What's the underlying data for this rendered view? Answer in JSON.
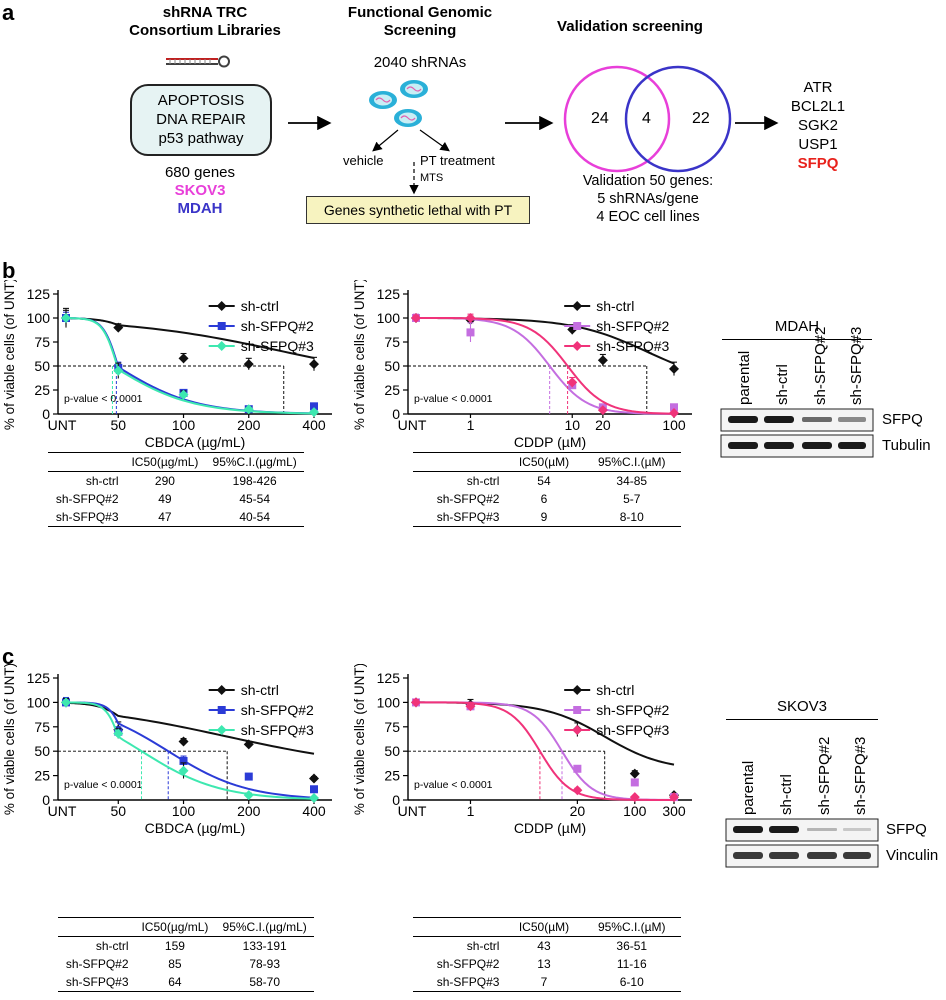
{
  "panel_a": {
    "letter": "a",
    "library_title": [
      "shRNA TRC",
      "Consortium Libraries"
    ],
    "library_box": [
      "APOPTOSIS",
      "DNA REPAIR",
      "p53 pathway"
    ],
    "genes_count": "680 genes",
    "cell_line_1": "SKOV3",
    "cell_line_2": "MDAH",
    "screen_title": [
      "Functional Genomic",
      "Screening"
    ],
    "shrna_count": "2040 shRNAs",
    "vehicle": "vehicle",
    "pt_treatment": "PT treatment",
    "mts": "MTS",
    "synthetic_lethal": "Genes synthetic lethal with PT",
    "validation_title": "Validation screening",
    "venn": {
      "left": "24",
      "overlap": "4",
      "right": "22"
    },
    "validation_text": [
      "Validation 50 genes:",
      "5 shRNAs/gene",
      "4 EOC cell lines"
    ],
    "genes": [
      "ATR",
      "BCL2L1",
      "SGK2",
      "USP1",
      "SFPQ"
    ],
    "colors": {
      "magenta": "#e83fd9",
      "blue": "#3a34c8",
      "red": "#e8221c"
    }
  },
  "panel_b": {
    "letter": "b",
    "table_cbdca": {
      "headers": [
        "",
        "IC50(µg/mL)",
        "95%C.I.(µg/mL)"
      ],
      "rows": [
        [
          "sh-ctrl",
          "290",
          "198-426"
        ],
        [
          "sh-SFPQ#2",
          "49",
          "45-54"
        ],
        [
          "sh-SFPQ#3",
          "47",
          "40-54"
        ]
      ]
    },
    "table_cddp": {
      "headers": [
        "",
        "IC50(µM)",
        "95%C.I.(µM)"
      ],
      "rows": [
        [
          "sh-ctrl",
          "54",
          "34-85"
        ],
        [
          "sh-SFPQ#2",
          "6",
          "5-7"
        ],
        [
          "sh-SFPQ#3",
          "9",
          "8-10"
        ]
      ]
    },
    "western": {
      "cell_line": "MDAH",
      "lanes": [
        "parental",
        "sh-ctrl",
        "sh-SFPQ#2",
        "sh-SFPQ#3"
      ],
      "bands": [
        "SFPQ",
        "Tubulin"
      ]
    }
  },
  "panel_c": {
    "letter": "c",
    "table_cbdca": {
      "headers": [
        "",
        "IC50(µg/mL)",
        "95%C.I.(µg/mL)"
      ],
      "rows": [
        [
          "sh-ctrl",
          "159",
          "133-191"
        ],
        [
          "sh-SFPQ#2",
          "85",
          "78-93"
        ],
        [
          "sh-SFPQ#3",
          "64",
          "58-70"
        ]
      ]
    },
    "table_cddp": {
      "headers": [
        "",
        "IC50(µM)",
        "95%C.I.(µM)"
      ],
      "rows": [
        [
          "sh-ctrl",
          "43",
          "36-51"
        ],
        [
          "sh-SFPQ#2",
          "13",
          "11-16"
        ],
        [
          "sh-SFPQ#3",
          "7",
          "6-10"
        ]
      ]
    },
    "western": {
      "cell_line": "SKOV3",
      "lanes": [
        "parental",
        "sh-ctrl",
        "sh-SFPQ#2",
        "sh-SFPQ#3"
      ],
      "bands": [
        "SFPQ",
        "Vinculin"
      ]
    }
  },
  "chart_data": [
    {
      "id": "b_cbdca",
      "type": "line",
      "xscale": "log",
      "ylabel": "% of viable cells (of UNT)",
      "xlabel": "CBDCA (µg/mL)",
      "ylim": [
        0,
        125
      ],
      "yticks": [
        0,
        25,
        50,
        75,
        100,
        125
      ],
      "xticks": [
        50,
        100,
        200,
        400
      ],
      "unt_label": "UNT",
      "annotation": "p-value < 0.0001",
      "series": [
        {
          "name": "sh-ctrl",
          "color": "#111111",
          "marker": "diamond",
          "ic50": 290,
          "points": [
            {
              "x": 0,
              "y": 100,
              "err": 8
            },
            {
              "x": 50,
              "y": 90,
              "err": 4
            },
            {
              "x": 100,
              "y": 58,
              "err": 5
            },
            {
              "x": 200,
              "y": 52,
              "err": 6
            },
            {
              "x": 400,
              "y": 52,
              "err": 7
            }
          ]
        },
        {
          "name": "sh-SFPQ#2",
          "color": "#2b3bd6",
          "marker": "square",
          "ic50": 49,
          "points": [
            {
              "x": 0,
              "y": 100,
              "err": 6
            },
            {
              "x": 50,
              "y": 48,
              "err": 6
            },
            {
              "x": 100,
              "y": 22,
              "err": 3
            },
            {
              "x": 200,
              "y": 5,
              "err": 2
            },
            {
              "x": 400,
              "y": 8,
              "err": 1
            }
          ]
        },
        {
          "name": "sh-SFPQ#3",
          "color": "#3ee8b0",
          "marker": "diamond",
          "ic50": 47,
          "points": [
            {
              "x": 0,
              "y": 100,
              "err": 10
            },
            {
              "x": 50,
              "y": 45,
              "err": 8
            },
            {
              "x": 100,
              "y": 20,
              "err": 4
            },
            {
              "x": 200,
              "y": 5,
              "err": 2
            },
            {
              "x": 400,
              "y": 2,
              "err": 1
            }
          ]
        }
      ]
    },
    {
      "id": "b_cddp",
      "type": "line",
      "xscale": "log",
      "ylabel": "% of viable cells (of UNT)",
      "xlabel": "CDDP (µM)",
      "ylim": [
        0,
        125
      ],
      "yticks": [
        0,
        25,
        50,
        75,
        100,
        125
      ],
      "xticks": [
        1,
        10,
        20,
        100
      ],
      "unt_label": "UNT",
      "annotation": "p-value < 0.0001",
      "series": [
        {
          "name": "sh-ctrl",
          "color": "#111111",
          "marker": "diamond",
          "ic50": 54,
          "points": [
            {
              "x": 0,
              "y": 100,
              "err": 3
            },
            {
              "x": 1,
              "y": 98,
              "err": 4
            },
            {
              "x": 10,
              "y": 88,
              "err": 5
            },
            {
              "x": 20,
              "y": 56,
              "err": 6
            },
            {
              "x": 100,
              "y": 47,
              "err": 7
            }
          ]
        },
        {
          "name": "sh-SFPQ#2",
          "color": "#c46ee0",
          "marker": "square",
          "ic50": 6,
          "points": [
            {
              "x": 0,
              "y": 100,
              "err": 4
            },
            {
              "x": 1,
              "y": 85,
              "err": 10
            },
            {
              "x": 10,
              "y": 30,
              "err": 4
            },
            {
              "x": 20,
              "y": 7,
              "err": 2
            },
            {
              "x": 100,
              "y": 7,
              "err": 1
            }
          ]
        },
        {
          "name": "sh-SFPQ#3",
          "color": "#f0337a",
          "marker": "diamond",
          "ic50": 9,
          "points": [
            {
              "x": 0,
              "y": 100,
              "err": 3
            },
            {
              "x": 1,
              "y": 100,
              "err": 4
            },
            {
              "x": 10,
              "y": 33,
              "err": 5
            },
            {
              "x": 20,
              "y": 4,
              "err": 2
            },
            {
              "x": 100,
              "y": 1,
              "err": 1
            }
          ]
        }
      ]
    },
    {
      "id": "c_cbdca",
      "type": "line",
      "xscale": "log",
      "ylabel": "% of viable cells (of UNT)",
      "xlabel": "CBDCA (µg/mL)",
      "ylim": [
        0,
        125
      ],
      "yticks": [
        0,
        25,
        50,
        75,
        100,
        125
      ],
      "xticks": [
        50,
        100,
        200,
        400
      ],
      "unt_label": "UNT",
      "annotation": "p-value < 0.0001",
      "series": [
        {
          "name": "sh-ctrl",
          "color": "#111111",
          "marker": "diamond",
          "ic50": 159,
          "points": [
            {
              "x": 0,
              "y": 100,
              "err": 4
            },
            {
              "x": 50,
              "y": 72,
              "err": 8
            },
            {
              "x": 100,
              "y": 60,
              "err": 3
            },
            {
              "x": 200,
              "y": 57,
              "err": 3
            },
            {
              "x": 400,
              "y": 22,
              "err": 2
            }
          ]
        },
        {
          "name": "sh-SFPQ#2",
          "color": "#2b3bd6",
          "marker": "square",
          "ic50": 85,
          "points": [
            {
              "x": 0,
              "y": 100,
              "err": 5
            },
            {
              "x": 50,
              "y": 70,
              "err": 5
            },
            {
              "x": 100,
              "y": 40,
              "err": 5
            },
            {
              "x": 200,
              "y": 24,
              "err": 3
            },
            {
              "x": 400,
              "y": 11,
              "err": 2
            }
          ]
        },
        {
          "name": "sh-SFPQ#3",
          "color": "#3ee8b0",
          "marker": "diamond",
          "ic50": 64,
          "points": [
            {
              "x": 0,
              "y": 100,
              "err": 4
            },
            {
              "x": 50,
              "y": 68,
              "err": 5
            },
            {
              "x": 100,
              "y": 30,
              "err": 8
            },
            {
              "x": 200,
              "y": 5,
              "err": 2
            },
            {
              "x": 400,
              "y": 2,
              "err": 1
            }
          ]
        }
      ]
    },
    {
      "id": "c_cddp",
      "type": "line",
      "xscale": "log",
      "ylabel": "% of viable cells (of UNT)",
      "xlabel": "CDDP (µM)",
      "ylim": [
        0,
        125
      ],
      "yticks": [
        0,
        25,
        50,
        75,
        100,
        125
      ],
      "xticks": [
        1,
        20,
        100,
        300
      ],
      "unt_label": "UNT",
      "annotation": "p-value < 0.0001",
      "series": [
        {
          "name": "sh-ctrl",
          "color": "#111111",
          "marker": "diamond",
          "ic50": 43,
          "points": [
            {
              "x": 0,
              "y": 100,
              "err": 3
            },
            {
              "x": 1,
              "y": 98,
              "err": 5
            },
            {
              "x": 20,
              "y": 72,
              "err": 7
            },
            {
              "x": 100,
              "y": 27,
              "err": 3
            },
            {
              "x": 300,
              "y": 5,
              "err": 1
            }
          ]
        },
        {
          "name": "sh-SFPQ#2",
          "color": "#c46ee0",
          "marker": "square",
          "ic50": 13,
          "points": [
            {
              "x": 0,
              "y": 100,
              "err": 3
            },
            {
              "x": 1,
              "y": 96,
              "err": 4
            },
            {
              "x": 20,
              "y": 32,
              "err": 3
            },
            {
              "x": 100,
              "y": 18,
              "err": 2
            },
            {
              "x": 300,
              "y": 3,
              "err": 1
            }
          ]
        },
        {
          "name": "sh-SFPQ#3",
          "color": "#f0337a",
          "marker": "diamond",
          "ic50": 7,
          "points": [
            {
              "x": 0,
              "y": 100,
              "err": 3
            },
            {
              "x": 1,
              "y": 96,
              "err": 4
            },
            {
              "x": 20,
              "y": 10,
              "err": 2
            },
            {
              "x": 100,
              "y": 3,
              "err": 1
            },
            {
              "x": 300,
              "y": 3,
              "err": 1
            }
          ]
        }
      ]
    }
  ]
}
